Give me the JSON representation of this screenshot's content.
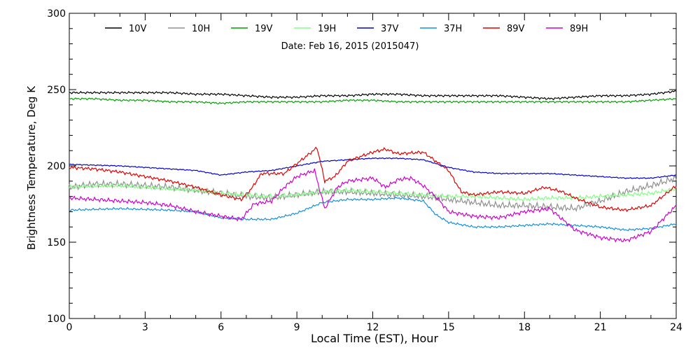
{
  "chart_data": {
    "type": "line",
    "title": "Date: Feb 16, 2015 (2015047)",
    "xlabel": "Local Time (EST), Hour",
    "ylabel": "Brightness Temperature, Deg K",
    "xlim": [
      0,
      24
    ],
    "ylim": [
      100,
      300
    ],
    "xticks": [
      0,
      3,
      6,
      9,
      12,
      15,
      18,
      21,
      24
    ],
    "yticks": [
      100,
      150,
      200,
      250,
      300
    ],
    "grid": false,
    "legend_position": "top",
    "series": [
      {
        "name": "10V",
        "color": "#000000",
        "jitter": 0.8,
        "points": [
          [
            0,
            248
          ],
          [
            1,
            248
          ],
          [
            2,
            248
          ],
          [
            3,
            248
          ],
          [
            4,
            248
          ],
          [
            5,
            247
          ],
          [
            6,
            247
          ],
          [
            7,
            246
          ],
          [
            8,
            245
          ],
          [
            9,
            245
          ],
          [
            10,
            246
          ],
          [
            11,
            246
          ],
          [
            12,
            247
          ],
          [
            13,
            247
          ],
          [
            14,
            246
          ],
          [
            15,
            246
          ],
          [
            16,
            246
          ],
          [
            17,
            246
          ],
          [
            18,
            245
          ],
          [
            19,
            244
          ],
          [
            20,
            245
          ],
          [
            21,
            246
          ],
          [
            22,
            246
          ],
          [
            23,
            247
          ],
          [
            24,
            249
          ]
        ]
      },
      {
        "name": "10H",
        "color": "#909090",
        "jitter": 2.5,
        "points": [
          [
            0,
            186
          ],
          [
            1,
            188
          ],
          [
            2,
            188
          ],
          [
            3,
            187
          ],
          [
            4,
            186
          ],
          [
            5,
            184
          ],
          [
            6,
            182
          ],
          [
            6.5,
            181
          ],
          [
            7,
            180
          ],
          [
            8,
            179
          ],
          [
            9,
            181
          ],
          [
            10,
            183
          ],
          [
            11,
            183
          ],
          [
            12,
            182
          ],
          [
            13,
            181
          ],
          [
            14,
            180
          ],
          [
            15,
            178
          ],
          [
            16,
            176
          ],
          [
            17,
            174
          ],
          [
            18,
            174
          ],
          [
            19,
            173
          ],
          [
            20,
            172
          ],
          [
            21,
            177
          ],
          [
            22,
            183
          ],
          [
            23,
            187
          ],
          [
            24,
            192
          ]
        ]
      },
      {
        "name": "19V",
        "color": "#00a000",
        "jitter": 0.7,
        "points": [
          [
            0,
            244
          ],
          [
            1,
            244
          ],
          [
            2,
            243
          ],
          [
            3,
            243
          ],
          [
            4,
            242
          ],
          [
            5,
            242
          ],
          [
            6,
            241
          ],
          [
            7,
            242
          ],
          [
            8,
            242
          ],
          [
            9,
            242
          ],
          [
            10,
            242
          ],
          [
            11,
            243
          ],
          [
            12,
            243
          ],
          [
            13,
            242
          ],
          [
            14,
            242
          ],
          [
            15,
            242
          ],
          [
            16,
            242
          ],
          [
            17,
            242
          ],
          [
            18,
            242
          ],
          [
            19,
            242
          ],
          [
            20,
            242
          ],
          [
            21,
            242
          ],
          [
            22,
            242
          ],
          [
            23,
            243
          ],
          [
            24,
            244
          ]
        ]
      },
      {
        "name": "19H",
        "color": "#80ff80",
        "jitter": 1.5,
        "points": [
          [
            0,
            186
          ],
          [
            1,
            187
          ],
          [
            2,
            187
          ],
          [
            3,
            186
          ],
          [
            4,
            185
          ],
          [
            5,
            184
          ],
          [
            6,
            182
          ],
          [
            7,
            181
          ],
          [
            8,
            180
          ],
          [
            9,
            181
          ],
          [
            10,
            183
          ],
          [
            11,
            184
          ],
          [
            12,
            183
          ],
          [
            13,
            182
          ],
          [
            14,
            181
          ],
          [
            15,
            180
          ],
          [
            16,
            180
          ],
          [
            17,
            179
          ],
          [
            18,
            178
          ],
          [
            19,
            179
          ],
          [
            20,
            179
          ],
          [
            21,
            180
          ],
          [
            22,
            181
          ],
          [
            23,
            182
          ],
          [
            24,
            185
          ]
        ]
      },
      {
        "name": "37V",
        "color": "#0000d0",
        "jitter": 0.4,
        "points": [
          [
            0,
            201
          ],
          [
            2,
            200
          ],
          [
            4,
            198
          ],
          [
            5,
            197
          ],
          [
            6,
            194
          ],
          [
            7,
            196
          ],
          [
            8,
            197
          ],
          [
            9,
            200
          ],
          [
            10,
            203
          ],
          [
            11,
            204
          ],
          [
            12,
            205
          ],
          [
            13,
            205
          ],
          [
            14,
            204
          ],
          [
            15,
            199
          ],
          [
            16,
            196
          ],
          [
            17,
            195
          ],
          [
            18,
            195
          ],
          [
            19,
            195
          ],
          [
            20,
            194
          ],
          [
            21,
            193
          ],
          [
            22,
            192
          ],
          [
            23,
            192
          ],
          [
            24,
            194
          ]
        ]
      },
      {
        "name": "37H",
        "color": "#1090e0",
        "jitter": 0.8,
        "points": [
          [
            0,
            171
          ],
          [
            2,
            172
          ],
          [
            4,
            171
          ],
          [
            5,
            170
          ],
          [
            6,
            166
          ],
          [
            7,
            165
          ],
          [
            8,
            165
          ],
          [
            9,
            169
          ],
          [
            10,
            176
          ],
          [
            11,
            178
          ],
          [
            12,
            178
          ],
          [
            13,
            179
          ],
          [
            14,
            177
          ],
          [
            14.5,
            168
          ],
          [
            15,
            163
          ],
          [
            16,
            160
          ],
          [
            17,
            160
          ],
          [
            18,
            161
          ],
          [
            19,
            162
          ],
          [
            20,
            161
          ],
          [
            21,
            160
          ],
          [
            22,
            158
          ],
          [
            23,
            159
          ],
          [
            24,
            162
          ]
        ]
      },
      {
        "name": "89V",
        "color": "#e00000",
        "jitter": 1.2,
        "points": [
          [
            0,
            199
          ],
          [
            1,
            198
          ],
          [
            2,
            196
          ],
          [
            3,
            193
          ],
          [
            4,
            190
          ],
          [
            5,
            186
          ],
          [
            6,
            181
          ],
          [
            6.8,
            178
          ],
          [
            7.2,
            185
          ],
          [
            7.6,
            195
          ],
          [
            8.5,
            195
          ],
          [
            9.5,
            208
          ],
          [
            9.8,
            212
          ],
          [
            10.1,
            190
          ],
          [
            10.5,
            193
          ],
          [
            11,
            203
          ],
          [
            12,
            209
          ],
          [
            12.5,
            211
          ],
          [
            13,
            208
          ],
          [
            14,
            209
          ],
          [
            15,
            197
          ],
          [
            15.5,
            183
          ],
          [
            16,
            181
          ],
          [
            17,
            183
          ],
          [
            18,
            182
          ],
          [
            18.8,
            186
          ],
          [
            19.5,
            183
          ],
          [
            20,
            179
          ],
          [
            21,
            173
          ],
          [
            22,
            171
          ],
          [
            23,
            174
          ],
          [
            24,
            187
          ]
        ]
      },
      {
        "name": "89H",
        "color": "#d000d0",
        "jitter": 1.5,
        "points": [
          [
            0,
            179
          ],
          [
            1,
            178
          ],
          [
            2,
            177
          ],
          [
            3,
            176
          ],
          [
            4,
            174
          ],
          [
            5,
            170
          ],
          [
            6,
            167
          ],
          [
            6.8,
            165
          ],
          [
            7.3,
            175
          ],
          [
            8,
            177
          ],
          [
            8.5,
            186
          ],
          [
            9,
            193
          ],
          [
            9.7,
            197
          ],
          [
            10.1,
            172
          ],
          [
            10.6,
            186
          ],
          [
            11,
            190
          ],
          [
            12,
            192
          ],
          [
            12.5,
            186
          ],
          [
            13,
            191
          ],
          [
            13.5,
            192
          ],
          [
            14,
            187
          ],
          [
            14.6,
            178
          ],
          [
            15,
            170
          ],
          [
            16,
            167
          ],
          [
            17,
            166
          ],
          [
            18,
            170
          ],
          [
            19,
            172
          ],
          [
            20,
            158
          ],
          [
            21,
            153
          ],
          [
            22,
            151
          ],
          [
            23,
            157
          ],
          [
            24,
            174
          ]
        ]
      }
    ]
  }
}
